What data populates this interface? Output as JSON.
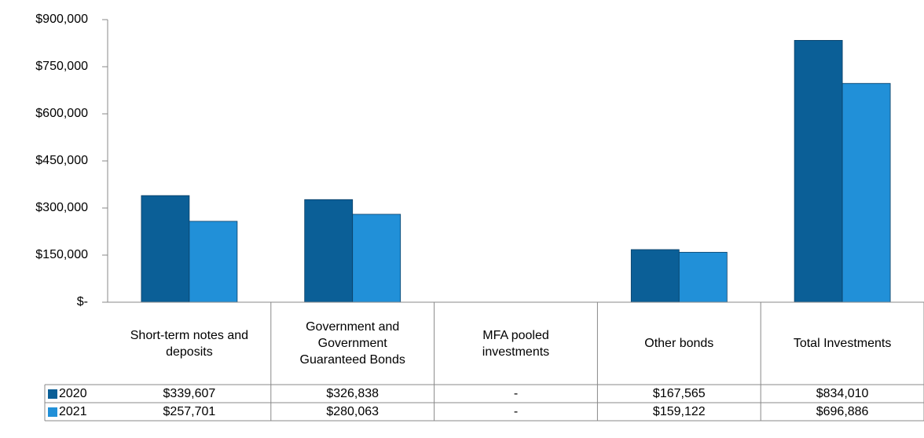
{
  "chart_data": {
    "type": "bar",
    "categories": [
      "Short-term notes and deposits",
      "Government and Government Guaranteed Bonds",
      "MFA pooled investments",
      "Other bonds",
      "Total Investments"
    ],
    "series": [
      {
        "name": "2020",
        "color": "#0b5f97",
        "values": [
          339607,
          326838,
          0,
          167565,
          834010
        ],
        "value_labels": [
          "$339,607",
          "$326,838",
          "-",
          "$167,565",
          "$834,010"
        ]
      },
      {
        "name": "2021",
        "color": "#2190d8",
        "values": [
          257701,
          280063,
          0,
          159122,
          696886
        ],
        "value_labels": [
          "$257,701",
          "$280,063",
          "-",
          "$159,122",
          "$696,886"
        ]
      }
    ],
    "ylim": [
      0,
      900000
    ],
    "yticks": [
      {
        "value": 0,
        "label": "$-"
      },
      {
        "value": 150000,
        "label": "$150,000"
      },
      {
        "value": 300000,
        "label": "$300,000"
      },
      {
        "value": 450000,
        "label": "$450,000"
      },
      {
        "value": 600000,
        "label": "$600,000"
      },
      {
        "value": 750000,
        "label": "$750,000"
      },
      {
        "value": 900000,
        "label": "$900,000"
      }
    ]
  }
}
